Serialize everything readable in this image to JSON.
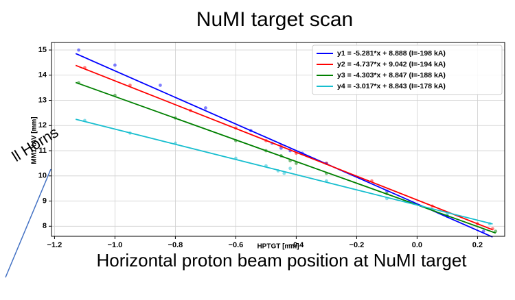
{
  "chart_data": {
    "type": "scatter",
    "title": "NuMI target scan",
    "x_label": "HPTGT [mm]",
    "y_label": "MM1XAV [mm]",
    "annotation": "ll Horns",
    "caption": "Horizontal proton beam position at NuMI target",
    "xlim": [
      -1.21,
      0.29
    ],
    "ylim": [
      7.6,
      15.3
    ],
    "xticks": [
      {
        "value": -1.2,
        "label": "−1.2"
      },
      {
        "value": -1.0,
        "label": "−1.0"
      },
      {
        "value": -0.8,
        "label": "−0.8"
      },
      {
        "value": -0.6,
        "label": "−0.6"
      },
      {
        "value": -0.4,
        "label": "−0.4"
      },
      {
        "value": -0.2,
        "label": "−0.2"
      },
      {
        "value": 0.0,
        "label": "0.0"
      },
      {
        "value": 0.2,
        "label": "0.2"
      }
    ],
    "yticks": [
      8,
      9,
      10,
      11,
      12,
      13,
      14,
      15
    ],
    "grid": true,
    "legend": "upper right",
    "series": [
      {
        "name": "y1 = -5.281*x + 8.888 (I=-198 kA)",
        "color": "#0000ff",
        "x": [
          -1.13,
          0.25
        ],
        "values": [
          14.86,
          7.57
        ],
        "points_x": [
          -1.12,
          -1.0,
          -0.85,
          -0.7,
          -0.55,
          -0.48,
          -0.45,
          -0.42,
          -0.38,
          -0.3,
          -0.1,
          0.1,
          0.22
        ],
        "points_y": [
          15.0,
          14.4,
          13.6,
          12.7,
          11.8,
          11.3,
          11.1,
          11.0,
          10.9,
          10.5,
          9.4,
          8.4,
          7.8
        ]
      },
      {
        "name": "y2 = -4.737*x + 9.042 (I=-194 kA)",
        "color": "#ff0000",
        "x": [
          -1.13,
          0.25
        ],
        "values": [
          14.39,
          7.86
        ],
        "points_x": [
          -1.1,
          -0.95,
          -0.75,
          -0.6,
          -0.5,
          -0.45,
          -0.4,
          -0.3,
          -0.15,
          0.05,
          0.2,
          0.25
        ],
        "points_y": [
          14.3,
          13.6,
          12.6,
          11.9,
          11.4,
          11.2,
          10.9,
          10.5,
          9.8,
          8.8,
          8.1,
          7.9
        ]
      },
      {
        "name": "y3 = -4.303*x + 8.847 (I=-188 kA)",
        "color": "#008000",
        "x": [
          -1.13,
          0.26
        ],
        "values": [
          13.71,
          7.73
        ],
        "points_x": [
          -1.12,
          -1.0,
          -0.8,
          -0.6,
          -0.5,
          -0.45,
          -0.42,
          -0.4,
          -0.3,
          -0.1,
          0.1,
          0.26
        ],
        "points_y": [
          13.7,
          13.2,
          12.3,
          11.4,
          11.0,
          10.8,
          10.6,
          10.5,
          10.1,
          9.3,
          8.4,
          7.8
        ]
      },
      {
        "name": "y4 = -3.017*x + 8.843 (I=-178 kA)",
        "color": "#17becf",
        "x": [
          -1.13,
          0.25
        ],
        "values": [
          12.25,
          8.09
        ],
        "points_x": [
          -1.1,
          -0.95,
          -0.8,
          -0.6,
          -0.5,
          -0.46,
          -0.44,
          -0.42,
          -0.3,
          -0.1,
          0.1,
          0.24
        ],
        "points_y": [
          12.2,
          11.7,
          11.3,
          10.7,
          10.4,
          10.2,
          10.1,
          10.3,
          9.8,
          9.1,
          8.5,
          8.1
        ]
      }
    ]
  }
}
